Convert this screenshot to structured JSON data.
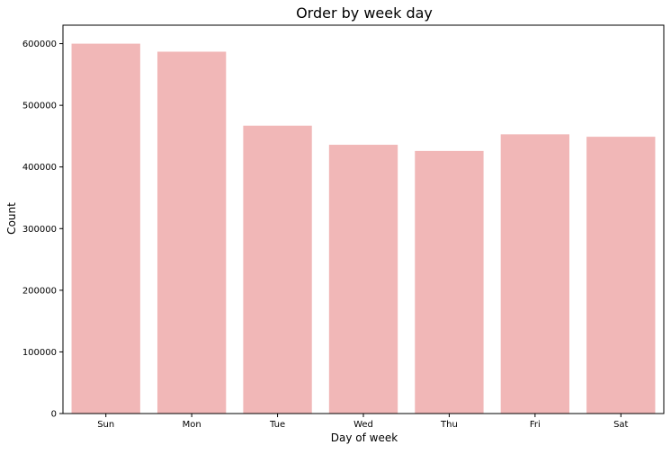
{
  "chart_data": {
    "type": "bar",
    "title": "Order by week day",
    "xlabel": "Day of week",
    "ylabel": "Count",
    "categories": [
      "Sun",
      "Mon",
      "Tue",
      "Wed",
      "Thu",
      "Fri",
      "Sat"
    ],
    "values": [
      600000,
      587000,
      467000,
      436000,
      426000,
      453000,
      449000
    ],
    "ylim": [
      0,
      630000
    ],
    "yticks": [
      0,
      100000,
      200000,
      300000,
      400000,
      500000,
      600000
    ],
    "ytick_labels": [
      "0",
      "100000",
      "200000",
      "300000",
      "400000",
      "500000",
      "600000"
    ],
    "grid": false,
    "bar_color": "#f1b7b7"
  }
}
